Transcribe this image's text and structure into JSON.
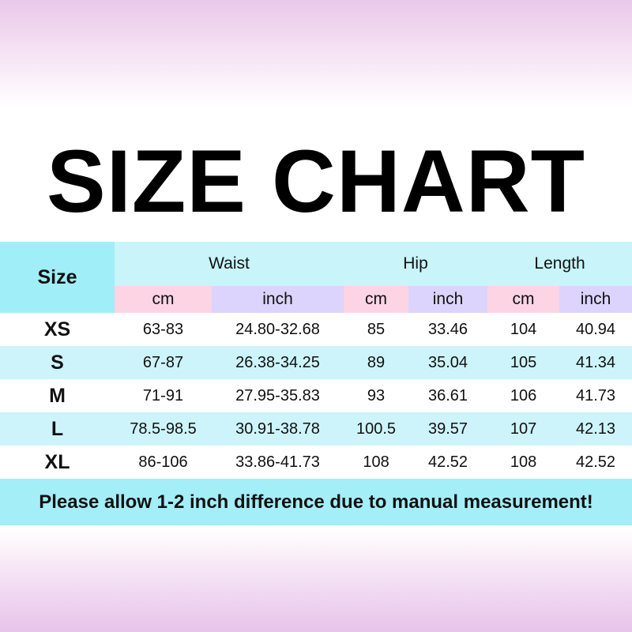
{
  "title": "SIZE CHART",
  "header": {
    "size": "Size",
    "groups": [
      "Waist",
      "Hip",
      "Length"
    ],
    "units": [
      "cm",
      "inch",
      "cm",
      "inch",
      "cm",
      "inch"
    ]
  },
  "rows": [
    [
      "XS",
      "63-83",
      "24.80-32.68",
      "85",
      "33.46",
      "104",
      "40.94"
    ],
    [
      "S",
      "67-87",
      "26.38-34.25",
      "89",
      "35.04",
      "105",
      "41.34"
    ],
    [
      "M",
      "71-91",
      "27.95-35.83",
      "93",
      "36.61",
      "106",
      "41.73"
    ],
    [
      "L",
      "78.5-98.5",
      "30.91-38.78",
      "100.5",
      "39.57",
      "107",
      "42.13"
    ],
    [
      "XL",
      "86-106",
      "33.86-41.73",
      "108",
      "42.52",
      "108",
      "42.52"
    ]
  ],
  "note": "Please allow 1-2 inch difference due to manual measurement!",
  "colors": {
    "size_header": "#a0eef8",
    "group_header": "#c8f4fa",
    "cm": "#fcd4e4",
    "inch": "#dcd4fc",
    "alt_row": "#cdf4fa",
    "note": "#a4eef8"
  }
}
